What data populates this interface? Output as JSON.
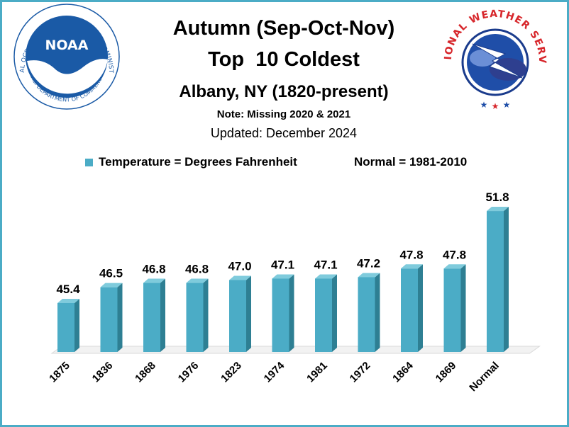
{
  "header": {
    "title": "Autumn (Sep-Oct-Nov)",
    "title2": "Top  10 Coldest",
    "subtitle": "Albany, NY (1820-present)",
    "note": "Note: Missing 2020 & 2021",
    "updated": "Updated: December 2024"
  },
  "legend": {
    "label": "Temperature = Degrees Fahrenheit",
    "normal": "Normal = 1981-2010"
  },
  "logos": {
    "noaa_center": "NOAA",
    "noaa_ring": "NATIONAL OCEANIC AND ATMOSPHERIC ADMINISTRATION",
    "noaa_bottom": "U.S. DEPARTMENT OF COMMERCE",
    "nws_ring": "NATIONAL WEATHER SERVICE"
  },
  "colors": {
    "bar_front": "#4bacc6",
    "bar_side": "#2e7f93",
    "bar_top": "#7fcbdc",
    "frame": "#4bacc6",
    "noaa_blue": "#1a5aa6",
    "nws_red": "#d7262b"
  },
  "chart_data": {
    "type": "bar",
    "categories": [
      "1875",
      "1836",
      "1868",
      "1976",
      "1823",
      "1974",
      "1981",
      "1972",
      "1864",
      "1869",
      "Normal"
    ],
    "values": [
      45.4,
      46.5,
      46.8,
      46.8,
      47.0,
      47.1,
      47.1,
      47.2,
      47.8,
      47.8,
      51.8
    ],
    "labels": [
      "45.4",
      "46.5",
      "46.8",
      "46.8",
      "47.0",
      "47.1",
      "47.1",
      "47.2",
      "47.8",
      "47.8",
      "51.8"
    ],
    "xlabel": "",
    "ylabel": "",
    "ylim": [
      42.0,
      52.0
    ],
    "grid": false,
    "legend_position": "top"
  }
}
